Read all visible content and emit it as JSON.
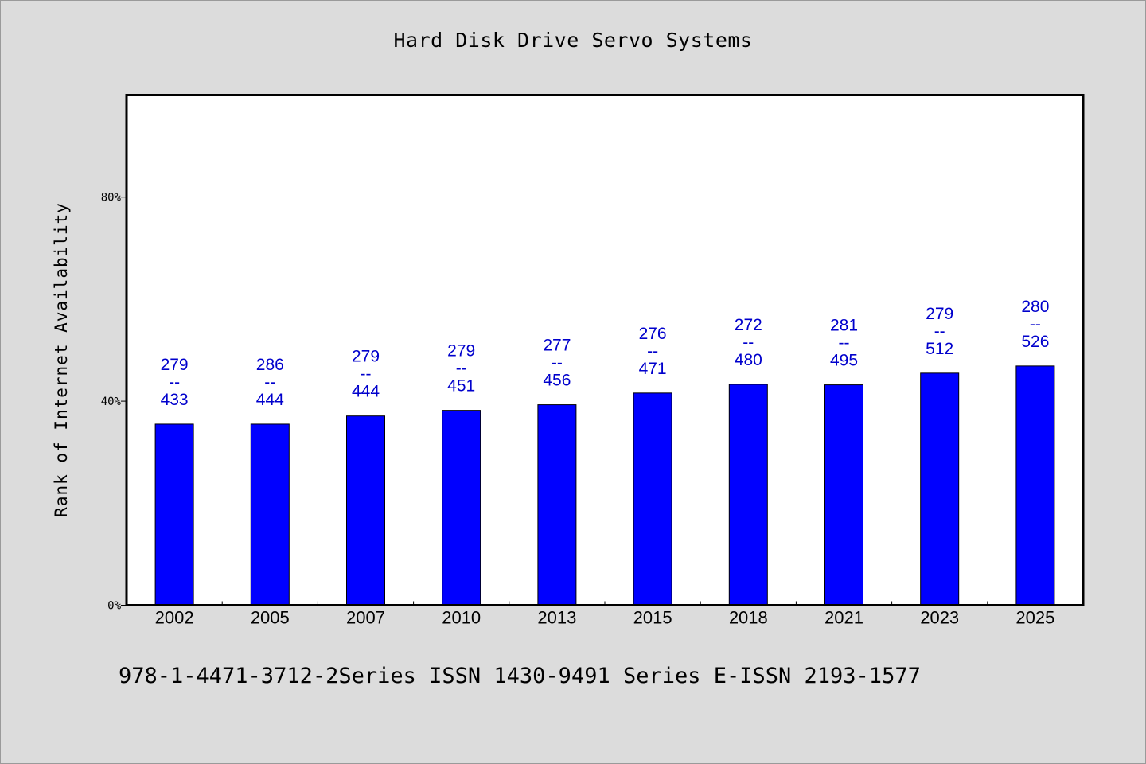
{
  "chart_data": {
    "type": "bar",
    "title": "Hard Disk Drive Servo Systems",
    "xlabel": "",
    "ylabel": "Rank of Internet Availability",
    "categories": [
      "2002",
      "2005",
      "2007",
      "2010",
      "2013",
      "2015",
      "2018",
      "2021",
      "2023",
      "2025"
    ],
    "values": [
      35.5,
      35.5,
      37.1,
      38.2,
      39.3,
      41.6,
      43.3,
      43.2,
      45.5,
      46.9
    ],
    "data_labels": [
      {
        "top": "279",
        "mid": "--",
        "bottom": "433"
      },
      {
        "top": "286",
        "mid": "--",
        "bottom": "444"
      },
      {
        "top": "279",
        "mid": "--",
        "bottom": "444"
      },
      {
        "top": "279",
        "mid": "--",
        "bottom": "451"
      },
      {
        "top": "277",
        "mid": "--",
        "bottom": "456"
      },
      {
        "top": "276",
        "mid": "--",
        "bottom": "471"
      },
      {
        "top": "272",
        "mid": "--",
        "bottom": "480"
      },
      {
        "top": "281",
        "mid": "--",
        "bottom": "495"
      },
      {
        "top": "279",
        "mid": "--",
        "bottom": "512"
      },
      {
        "top": "280",
        "mid": "--",
        "bottom": "526"
      }
    ],
    "ylim": [
      0,
      100
    ],
    "yticks": [
      {
        "value": 0,
        "label": "0%"
      },
      {
        "value": 40,
        "label": "40%"
      },
      {
        "value": 80,
        "label": "80%"
      }
    ],
    "grid": false,
    "bar_color": "#0000ff",
    "label_color": "#0000cc",
    "plot_background": "#ffffff",
    "page_background": "#dcdcdc"
  },
  "footer": {
    "text": "978-1-4471-3712-2Series ISSN 1430-9491 Series E-ISSN 2193-1577"
  }
}
